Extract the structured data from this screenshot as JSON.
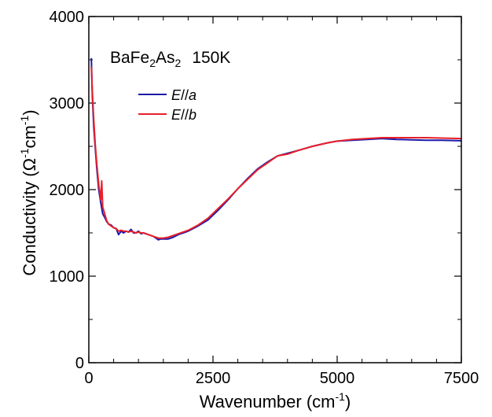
{
  "chart_data": {
    "type": "line",
    "annotation": {
      "formula_base": "BaFe",
      "formula_sub1": "2",
      "formula_mid": "As",
      "formula_sub2": "2",
      "temperature": "150K"
    },
    "xlabel": {
      "text": "Wavenumber (cm",
      "sup": "-1",
      "close": ")"
    },
    "ylabel": {
      "text": "Conductivity (Ω",
      "sup1": "-1",
      "mid": "cm",
      "sup2": "-1",
      "close": ")"
    },
    "xlim": [
      0,
      7500
    ],
    "ylim": [
      0,
      4000
    ],
    "x_ticks": [
      0,
      2500,
      5000,
      7500
    ],
    "y_ticks": [
      0,
      1000,
      2000,
      3000,
      4000
    ],
    "x_tick_labels": [
      "0",
      "2500",
      "5000",
      "7500"
    ],
    "y_tick_labels": [
      "0",
      "1000",
      "2000",
      "3000",
      "4000"
    ],
    "grid": false,
    "legend_position": "upper-left",
    "series": [
      {
        "name": "E//a",
        "legend_italic": "E",
        "legend_slashes": "//",
        "legend_axis": "a",
        "color": "#1a1aaa",
        "x": [
          50,
          70,
          100,
          130,
          160,
          200,
          240,
          280,
          320,
          360,
          400,
          450,
          500,
          550,
          600,
          650,
          700,
          750,
          800,
          850,
          900,
          950,
          1000,
          1050,
          1100,
          1200,
          1300,
          1350,
          1400,
          1450,
          1500,
          1600,
          1700,
          1800,
          1900,
          2000,
          2200,
          2400,
          2600,
          2800,
          3000,
          3200,
          3400,
          3600,
          3800,
          4000,
          4200,
          4500,
          4800,
          5000,
          5300,
          5600,
          5900,
          6200,
          6500,
          6800,
          7100,
          7500
        ],
        "y": [
          3520,
          3100,
          2720,
          2480,
          2250,
          2000,
          1850,
          1720,
          1680,
          1630,
          1600,
          1590,
          1560,
          1550,
          1480,
          1520,
          1500,
          1520,
          1510,
          1540,
          1500,
          1500,
          1520,
          1490,
          1500,
          1480,
          1460,
          1440,
          1420,
          1430,
          1430,
          1430,
          1450,
          1480,
          1500,
          1520,
          1580,
          1650,
          1760,
          1880,
          2010,
          2130,
          2240,
          2320,
          2390,
          2420,
          2450,
          2500,
          2540,
          2560,
          2570,
          2580,
          2590,
          2580,
          2575,
          2570,
          2570,
          2565
        ]
      },
      {
        "name": "E//b",
        "legend_italic": "E",
        "legend_slashes": "//",
        "legend_axis": "b",
        "color": "#e8202a",
        "x": [
          50,
          70,
          100,
          130,
          160,
          200,
          240,
          260,
          280,
          320,
          360,
          400,
          450,
          500,
          550,
          600,
          650,
          700,
          750,
          800,
          850,
          900,
          950,
          1000,
          1050,
          1100,
          1200,
          1300,
          1400,
          1500,
          1600,
          1700,
          1800,
          1900,
          2000,
          2200,
          2400,
          2600,
          2800,
          3000,
          3200,
          3400,
          3600,
          3800,
          4000,
          4200,
          4500,
          4800,
          5000,
          5300,
          5600,
          5900,
          6200,
          6500,
          6800,
          7100,
          7500
        ],
        "y": [
          3420,
          3150,
          2800,
          2520,
          2300,
          2060,
          1880,
          2100,
          1800,
          1720,
          1640,
          1600,
          1580,
          1560,
          1550,
          1520,
          1530,
          1520,
          1520,
          1510,
          1520,
          1510,
          1500,
          1510,
          1500,
          1500,
          1480,
          1460,
          1440,
          1440,
          1450,
          1470,
          1490,
          1510,
          1530,
          1590,
          1670,
          1780,
          1890,
          2010,
          2120,
          2230,
          2310,
          2390,
          2410,
          2450,
          2500,
          2540,
          2560,
          2580,
          2590,
          2600,
          2600,
          2600,
          2600,
          2595,
          2590
        ]
      }
    ]
  }
}
